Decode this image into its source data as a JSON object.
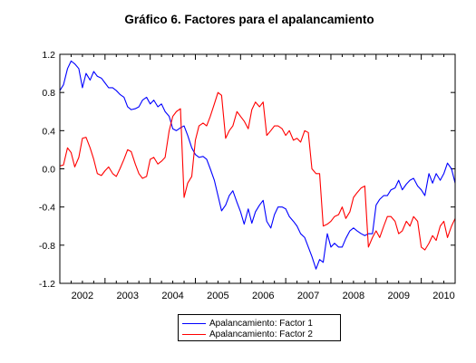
{
  "chart_data": {
    "type": "line",
    "title": "Gráfico 6. Factores para el apalancamiento",
    "xlabel": "",
    "ylabel": "",
    "x_ticks": [
      "2002",
      "2003",
      "2004",
      "2005",
      "2006",
      "2007",
      "2008",
      "2009",
      "2010"
    ],
    "xlim": [
      2002.0,
      2010.75
    ],
    "ylim": [
      -1.2,
      1.2
    ],
    "y_ticks": [
      "1.2",
      "0.8",
      "0.4",
      "0.0",
      "-0.4",
      "-0.8",
      "-1.2"
    ],
    "y_tick_values": [
      1.2,
      0.8,
      0.4,
      0.0,
      -0.4,
      -0.8,
      -1.2
    ],
    "grid": false,
    "legend_position": "bottom-center",
    "series": [
      {
        "name": "Apalancamiento: Factor 1",
        "color": "#0000ff",
        "x": [
          2002.0,
          2002.08,
          2002.17,
          2002.25,
          2002.33,
          2002.42,
          2002.5,
          2002.58,
          2002.67,
          2002.75,
          2002.83,
          2002.92,
          2003.0,
          2003.08,
          2003.17,
          2003.25,
          2003.33,
          2003.42,
          2003.5,
          2003.58,
          2003.67,
          2003.75,
          2003.83,
          2003.92,
          2004.0,
          2004.08,
          2004.17,
          2004.25,
          2004.33,
          2004.42,
          2004.5,
          2004.58,
          2004.67,
          2004.75,
          2004.83,
          2004.92,
          2005.0,
          2005.08,
          2005.17,
          2005.25,
          2005.33,
          2005.42,
          2005.5,
          2005.58,
          2005.67,
          2005.75,
          2005.83,
          2005.92,
          2006.0,
          2006.08,
          2006.17,
          2006.25,
          2006.33,
          2006.42,
          2006.5,
          2006.58,
          2006.67,
          2006.75,
          2006.83,
          2006.92,
          2007.0,
          2007.08,
          2007.17,
          2007.25,
          2007.33,
          2007.42,
          2007.5,
          2007.58,
          2007.67,
          2007.75,
          2007.83,
          2007.92,
          2008.0,
          2008.08,
          2008.17,
          2008.25,
          2008.33,
          2008.42,
          2008.5,
          2008.58,
          2008.67,
          2008.75,
          2008.83,
          2008.92,
          2009.0,
          2009.08,
          2009.17,
          2009.25,
          2009.33,
          2009.42,
          2009.5,
          2009.58,
          2009.67,
          2009.75,
          2009.83,
          2009.92,
          2010.0,
          2010.08,
          2010.17,
          2010.25,
          2010.33,
          2010.42,
          2010.5,
          2010.58,
          2010.67,
          2010.75
        ],
        "y": [
          0.82,
          0.88,
          1.05,
          1.13,
          1.1,
          1.05,
          0.85,
          1.0,
          0.93,
          1.02,
          0.97,
          0.95,
          0.9,
          0.85,
          0.85,
          0.82,
          0.78,
          0.75,
          0.65,
          0.62,
          0.63,
          0.65,
          0.72,
          0.75,
          0.68,
          0.72,
          0.65,
          0.68,
          0.6,
          0.55,
          0.42,
          0.4,
          0.43,
          0.45,
          0.35,
          0.22,
          0.15,
          0.12,
          0.13,
          0.1,
          0.0,
          -0.12,
          -0.28,
          -0.44,
          -0.38,
          -0.28,
          -0.23,
          -0.35,
          -0.45,
          -0.58,
          -0.42,
          -0.57,
          -0.45,
          -0.38,
          -0.33,
          -0.55,
          -0.62,
          -0.48,
          -0.4,
          -0.4,
          -0.42,
          -0.5,
          -0.55,
          -0.6,
          -0.68,
          -0.72,
          -0.82,
          -0.92,
          -1.05,
          -0.95,
          -0.98,
          -0.68,
          -0.82,
          -0.78,
          -0.82,
          -0.82,
          -0.73,
          -0.65,
          -0.62,
          -0.65,
          -0.68,
          -0.7,
          -0.68,
          -0.68,
          -0.38,
          -0.32,
          -0.28,
          -0.28,
          -0.22,
          -0.2,
          -0.12,
          -0.22,
          -0.16,
          -0.12,
          -0.1,
          -0.18,
          -0.22,
          -0.28,
          -0.05,
          -0.15,
          -0.05,
          -0.12,
          -0.05,
          0.06,
          0.0,
          -0.15
        ],
        "values_note_hidden": ""
      },
      {
        "name": "Apalancamiento: Factor 2",
        "color": "#ff0000",
        "x": [
          2002.0,
          2002.08,
          2002.17,
          2002.25,
          2002.33,
          2002.42,
          2002.5,
          2002.58,
          2002.67,
          2002.75,
          2002.83,
          2002.92,
          2003.0,
          2003.08,
          2003.17,
          2003.25,
          2003.33,
          2003.42,
          2003.5,
          2003.58,
          2003.67,
          2003.75,
          2003.83,
          2003.92,
          2004.0,
          2004.08,
          2004.17,
          2004.25,
          2004.33,
          2004.42,
          2004.5,
          2004.58,
          2004.67,
          2004.75,
          2004.83,
          2004.92,
          2005.0,
          2005.08,
          2005.17,
          2005.25,
          2005.33,
          2005.42,
          2005.5,
          2005.58,
          2005.67,
          2005.75,
          2005.83,
          2005.92,
          2006.0,
          2006.08,
          2006.17,
          2006.25,
          2006.33,
          2006.42,
          2006.5,
          2006.58,
          2006.67,
          2006.75,
          2006.83,
          2006.92,
          2007.0,
          2007.08,
          2007.17,
          2007.25,
          2007.33,
          2007.42,
          2007.5,
          2007.58,
          2007.67,
          2007.75,
          2007.83,
          2007.92,
          2008.0,
          2008.08,
          2008.17,
          2008.25,
          2008.33,
          2008.42,
          2008.5,
          2008.58,
          2008.67,
          2008.75,
          2008.83,
          2008.92,
          2009.0,
          2009.08,
          2009.17,
          2009.25,
          2009.33,
          2009.42,
          2009.5,
          2009.58,
          2009.67,
          2009.75,
          2009.83,
          2009.92,
          2010.0,
          2010.08,
          2010.17,
          2010.25,
          2010.33,
          2010.42,
          2010.5,
          2010.58,
          2010.67,
          2010.75
        ],
        "y": [
          0.03,
          0.04,
          0.22,
          0.17,
          0.02,
          0.12,
          0.32,
          0.33,
          0.22,
          0.1,
          -0.05,
          -0.07,
          -0.02,
          0.02,
          -0.05,
          -0.08,
          0.0,
          0.1,
          0.2,
          0.18,
          0.05,
          -0.05,
          -0.1,
          -0.08,
          0.1,
          0.12,
          0.05,
          0.08,
          0.12,
          0.4,
          0.55,
          0.6,
          0.63,
          -0.3,
          -0.15,
          -0.08,
          0.3,
          0.45,
          0.48,
          0.45,
          0.55,
          0.68,
          0.8,
          0.77,
          0.32,
          0.4,
          0.45,
          0.6,
          0.55,
          0.5,
          0.42,
          0.62,
          0.7,
          0.65,
          0.7,
          0.35,
          0.4,
          0.45,
          0.45,
          0.42,
          0.35,
          0.4,
          0.3,
          0.32,
          0.28,
          0.4,
          0.38,
          0.0,
          -0.05,
          -0.05,
          -0.6,
          -0.58,
          -0.55,
          -0.5,
          -0.48,
          -0.4,
          -0.52,
          -0.45,
          -0.3,
          -0.25,
          -0.2,
          -0.18,
          -0.82,
          -0.72,
          -0.65,
          -0.72,
          -0.6,
          -0.5,
          -0.5,
          -0.55,
          -0.68,
          -0.65,
          -0.55,
          -0.6,
          -0.5,
          -0.55,
          -0.82,
          -0.85,
          -0.78,
          -0.7,
          -0.75,
          -0.6,
          -0.55,
          -0.72,
          -0.6,
          -0.52
        ]
      }
    ]
  }
}
